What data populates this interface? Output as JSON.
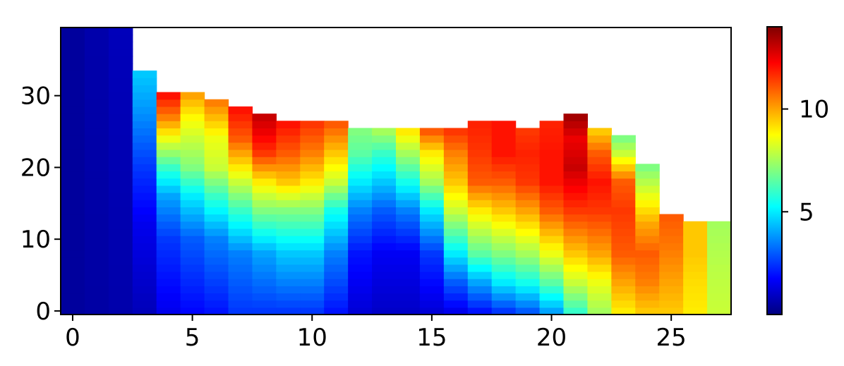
{
  "chart_data": {
    "type": "heatmap",
    "colormap": "jet",
    "x_ticks": [
      "0",
      "5",
      "10",
      "15",
      "20",
      "25"
    ],
    "y_ticks": [
      "0",
      "10",
      "20",
      "30"
    ],
    "colorbar_ticks": [
      "5",
      "10"
    ],
    "xlim": [
      -0.5,
      27.5
    ],
    "ylim": [
      -0.5,
      39.5
    ],
    "value_range": [
      0,
      14
    ],
    "columns": [
      {
        "x": 0,
        "top": 39,
        "stops": [
          [
            0,
            0.4
          ],
          [
            39,
            0.4
          ]
        ]
      },
      {
        "x": 1,
        "top": 39,
        "stops": [
          [
            0,
            0.5
          ],
          [
            39,
            0.6
          ]
        ]
      },
      {
        "x": 2,
        "top": 39,
        "stops": [
          [
            0,
            0.6
          ],
          [
            39,
            0.8
          ]
        ]
      },
      {
        "x": 3,
        "top": 33,
        "stops": [
          [
            0,
            0.8
          ],
          [
            12,
            1.5
          ],
          [
            20,
            2.5
          ],
          [
            28,
            3.8
          ],
          [
            33,
            4.5
          ]
        ]
      },
      {
        "x": 4,
        "top": 30,
        "stops": [
          [
            0,
            1.5
          ],
          [
            10,
            2.5
          ],
          [
            16,
            4.0
          ],
          [
            20,
            6.0
          ],
          [
            24,
            8.5
          ],
          [
            27,
            10.5
          ],
          [
            30,
            12.0
          ]
        ]
      },
      {
        "x": 5,
        "top": 30,
        "stops": [
          [
            0,
            1.8
          ],
          [
            10,
            3.0
          ],
          [
            16,
            5.0
          ],
          [
            20,
            7.0
          ],
          [
            24,
            8.0
          ],
          [
            27,
            8.8
          ],
          [
            30,
            10.0
          ]
        ]
      },
      {
        "x": 6,
        "top": 29,
        "stops": [
          [
            0,
            2.0
          ],
          [
            10,
            3.5
          ],
          [
            16,
            6.0
          ],
          [
            20,
            8.0
          ],
          [
            24,
            8.5
          ],
          [
            29,
            10.5
          ]
        ]
      },
      {
        "x": 7,
        "top": 28,
        "stops": [
          [
            0,
            2.5
          ],
          [
            8,
            3.5
          ],
          [
            14,
            6.0
          ],
          [
            20,
            9.0
          ],
          [
            24,
            11.0
          ],
          [
            28,
            12.0
          ]
        ]
      },
      {
        "x": 8,
        "top": 27,
        "stops": [
          [
            0,
            2.5
          ],
          [
            8,
            4.0
          ],
          [
            14,
            7.0
          ],
          [
            18,
            9.0
          ],
          [
            22,
            11.5
          ],
          [
            25,
            12.5
          ],
          [
            27,
            13.0
          ]
        ]
      },
      {
        "x": 9,
        "top": 26,
        "stops": [
          [
            0,
            2.5
          ],
          [
            8,
            4.5
          ],
          [
            14,
            7.0
          ],
          [
            18,
            9.5
          ],
          [
            22,
            11.0
          ],
          [
            26,
            12.0
          ]
        ]
      },
      {
        "x": 10,
        "top": 26,
        "stops": [
          [
            0,
            2.5
          ],
          [
            8,
            4.5
          ],
          [
            14,
            7.0
          ],
          [
            18,
            9.0
          ],
          [
            22,
            10.5
          ],
          [
            26,
            11.5
          ]
        ]
      },
      {
        "x": 11,
        "top": 26,
        "stops": [
          [
            0,
            2.0
          ],
          [
            8,
            3.5
          ],
          [
            14,
            5.5
          ],
          [
            18,
            8.0
          ],
          [
            22,
            9.5
          ],
          [
            26,
            11.0
          ]
        ]
      },
      {
        "x": 12,
        "top": 25,
        "stops": [
          [
            0,
            1.2
          ],
          [
            8,
            2.0
          ],
          [
            14,
            3.5
          ],
          [
            18,
            5.0
          ],
          [
            22,
            6.5
          ],
          [
            25,
            7.0
          ]
        ]
      },
      {
        "x": 13,
        "top": 25,
        "stops": [
          [
            0,
            1.0
          ],
          [
            8,
            1.6
          ],
          [
            14,
            3.0
          ],
          [
            18,
            4.5
          ],
          [
            22,
            6.0
          ],
          [
            25,
            7.5
          ]
        ]
      },
      {
        "x": 14,
        "top": 25,
        "stops": [
          [
            0,
            1.0
          ],
          [
            8,
            1.6
          ],
          [
            14,
            3.5
          ],
          [
            18,
            5.5
          ],
          [
            22,
            7.5
          ],
          [
            25,
            9.0
          ]
        ]
      },
      {
        "x": 15,
        "top": 25,
        "stops": [
          [
            0,
            1.2
          ],
          [
            8,
            2.5
          ],
          [
            14,
            5.0
          ],
          [
            18,
            7.5
          ],
          [
            22,
            9.0
          ],
          [
            25,
            11.0
          ]
        ]
      },
      {
        "x": 16,
        "top": 25,
        "stops": [
          [
            0,
            1.5
          ],
          [
            4,
            3.0
          ],
          [
            8,
            5.0
          ],
          [
            14,
            8.0
          ],
          [
            18,
            9.5
          ],
          [
            22,
            10.5
          ],
          [
            25,
            11.5
          ]
        ]
      },
      {
        "x": 17,
        "top": 26,
        "stops": [
          [
            0,
            2.0
          ],
          [
            4,
            4.0
          ],
          [
            8,
            6.5
          ],
          [
            14,
            9.0
          ],
          [
            18,
            11.0
          ],
          [
            22,
            11.5
          ],
          [
            26,
            11.8
          ]
        ]
      },
      {
        "x": 18,
        "top": 26,
        "stops": [
          [
            0,
            2.5
          ],
          [
            4,
            5.0
          ],
          [
            8,
            7.0
          ],
          [
            14,
            9.5
          ],
          [
            18,
            11.0
          ],
          [
            22,
            12.0
          ],
          [
            26,
            12.0
          ]
        ]
      },
      {
        "x": 19,
        "top": 25,
        "stops": [
          [
            0,
            3.0
          ],
          [
            4,
            5.5
          ],
          [
            8,
            7.5
          ],
          [
            14,
            10.0
          ],
          [
            18,
            11.5
          ],
          [
            22,
            11.8
          ],
          [
            25,
            11.5
          ]
        ]
      },
      {
        "x": 20,
        "top": 26,
        "stops": [
          [
            0,
            4.0
          ],
          [
            4,
            6.5
          ],
          [
            8,
            8.5
          ],
          [
            14,
            11.0
          ],
          [
            18,
            12.0
          ],
          [
            22,
            12.0
          ],
          [
            26,
            11.8
          ]
        ]
      },
      {
        "x": 21,
        "top": 27,
        "stops": [
          [
            0,
            6.0
          ],
          [
            4,
            8.0
          ],
          [
            8,
            9.5
          ],
          [
            14,
            11.5
          ],
          [
            18,
            12.5
          ],
          [
            20,
            13.0
          ],
          [
            24,
            12.5
          ],
          [
            27,
            13.5
          ]
        ]
      },
      {
        "x": 22,
        "top": 25,
        "stops": [
          [
            0,
            7.5
          ],
          [
            4,
            8.5
          ],
          [
            8,
            10.0
          ],
          [
            14,
            11.5
          ],
          [
            18,
            12.0
          ],
          [
            22,
            11.0
          ],
          [
            25,
            9.5
          ]
        ]
      },
      {
        "x": 23,
        "top": 24,
        "stops": [
          [
            0,
            9.0
          ],
          [
            4,
            10.0
          ],
          [
            8,
            11.0
          ],
          [
            14,
            11.5
          ],
          [
            18,
            11.0
          ],
          [
            22,
            8.0
          ],
          [
            24,
            7.0
          ]
        ]
      },
      {
        "x": 24,
        "top": 20,
        "stops": [
          [
            0,
            9.5
          ],
          [
            4,
            10.5
          ],
          [
            8,
            11.0
          ],
          [
            12,
            10.0
          ],
          [
            16,
            8.5
          ],
          [
            20,
            7.0
          ]
        ]
      },
      {
        "x": 25,
        "top": 13,
        "stops": [
          [
            0,
            9.5
          ],
          [
            4,
            10.0
          ],
          [
            8,
            10.5
          ],
          [
            13,
            11.0
          ]
        ]
      },
      {
        "x": 26,
        "top": 12,
        "stops": [
          [
            0,
            9.0
          ],
          [
            4,
            9.2
          ],
          [
            8,
            9.5
          ],
          [
            12,
            9.5
          ]
        ]
      },
      {
        "x": 27,
        "top": 12,
        "stops": [
          [
            0,
            8.0
          ],
          [
            6,
            7.8
          ],
          [
            12,
            7.5
          ]
        ]
      }
    ]
  }
}
